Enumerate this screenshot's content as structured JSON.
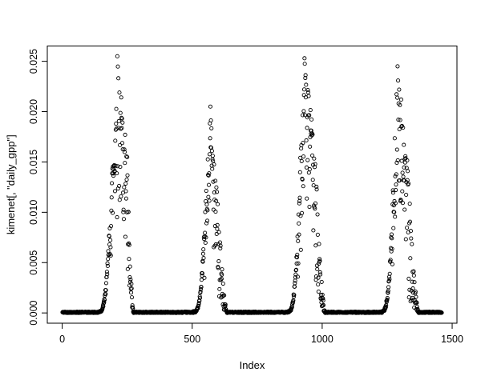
{
  "page": {
    "background": "#ffffff",
    "foreground": "#000000"
  },
  "chart_data": {
    "type": "scatter",
    "title": "",
    "xlabel": "Index",
    "ylabel": "kimenet[, \"daily_gpp\"]",
    "legend": null,
    "grid": false,
    "n_points": 1460,
    "xlim": [
      -57.4,
      1518.4
    ],
    "ylim": [
      -0.00102,
      0.02652
    ],
    "x_ticks": [
      {
        "v": 0,
        "label": "0"
      },
      {
        "v": 500,
        "label": "500"
      },
      {
        "v": 1000,
        "label": "1000"
      },
      {
        "v": 1500,
        "label": "1500"
      }
    ],
    "y_ticks": [
      {
        "v": 0.0,
        "label": "0.000"
      },
      {
        "v": 0.005,
        "label": "0.005"
      },
      {
        "v": 0.01,
        "label": "0.010"
      },
      {
        "v": 0.015,
        "label": "0.015"
      },
      {
        "v": 0.02,
        "label": "0.020"
      },
      {
        "v": 0.025,
        "label": "0.025"
      }
    ],
    "marker": {
      "shape": "open-circle",
      "radius": 2.1,
      "stroke": "#000000",
      "stroke_width": 0.9
    },
    "axis_color": "#000000",
    "seed": 42,
    "series_model": {
      "description": "Daily GPP time series over ~4 years: long winter baselines at 0 and four scattered growing-season peaks",
      "quiet_max": 0.00012,
      "seasons": [
        {
          "rise_start": 140,
          "burst_start": 180,
          "peak_index": 212,
          "burst_end": 250,
          "fall_end": 275,
          "peak_value": 0.0255,
          "rise_top": 0.007
        },
        {
          "rise_start": 505,
          "burst_start": 545,
          "peak_index": 570,
          "burst_end": 598,
          "fall_end": 635,
          "peak_value": 0.0205,
          "rise_top": 0.0065
        },
        {
          "rise_start": 868,
          "burst_start": 905,
          "peak_index": 932,
          "burst_end": 975,
          "fall_end": 1012,
          "peak_value": 0.0253,
          "rise_top": 0.007
        },
        {
          "rise_start": 1228,
          "burst_start": 1266,
          "peak_index": 1290,
          "burst_end": 1330,
          "fall_end": 1372,
          "peak_value": 0.0245,
          "rise_top": 0.007
        }
      ]
    }
  }
}
